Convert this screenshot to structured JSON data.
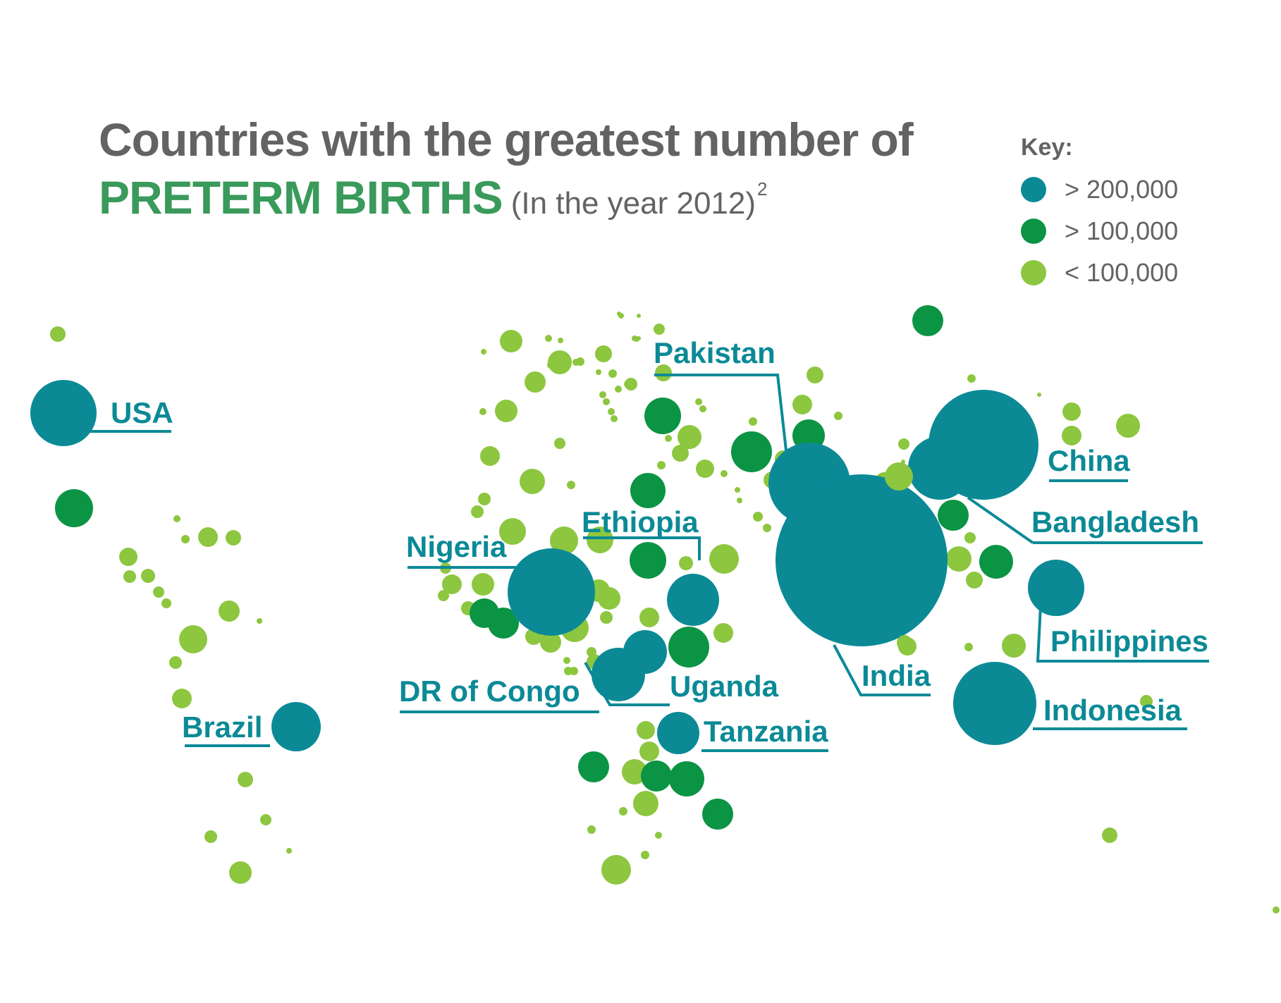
{
  "title": {
    "line1": "Countries with the greatest number of",
    "highlight": "PRETERM BIRTHS",
    "subtitle": "(In the year 2012)",
    "footnote": "2"
  },
  "key": {
    "title": "Key:",
    "items": [
      {
        "label": "> 200,000",
        "color": "#0b8a96"
      },
      {
        "label": "> 100,000",
        "color": "#0b9444"
      },
      {
        "label": "< 100,000",
        "color": "#8dc63f"
      }
    ]
  },
  "countries": [
    {
      "name": "USA",
      "category": "> 200,000"
    },
    {
      "name": "Brazil",
      "category": "> 200,000"
    },
    {
      "name": "Nigeria",
      "category": "> 200,000"
    },
    {
      "name": "Ethiopia",
      "category": "> 200,000"
    },
    {
      "name": "DR of Congo",
      "category": "> 200,000"
    },
    {
      "name": "Uganda",
      "category": "> 200,000"
    },
    {
      "name": "Tanzania",
      "category": "> 200,000"
    },
    {
      "name": "Pakistan",
      "category": "> 200,000"
    },
    {
      "name": "India",
      "category": "> 200,000"
    },
    {
      "name": "China",
      "category": "> 200,000"
    },
    {
      "name": "Bangladesh",
      "category": "> 200,000"
    },
    {
      "name": "Philippines",
      "category": "> 200,000"
    },
    {
      "name": "Indonesia",
      "category": "> 200,000"
    }
  ]
}
